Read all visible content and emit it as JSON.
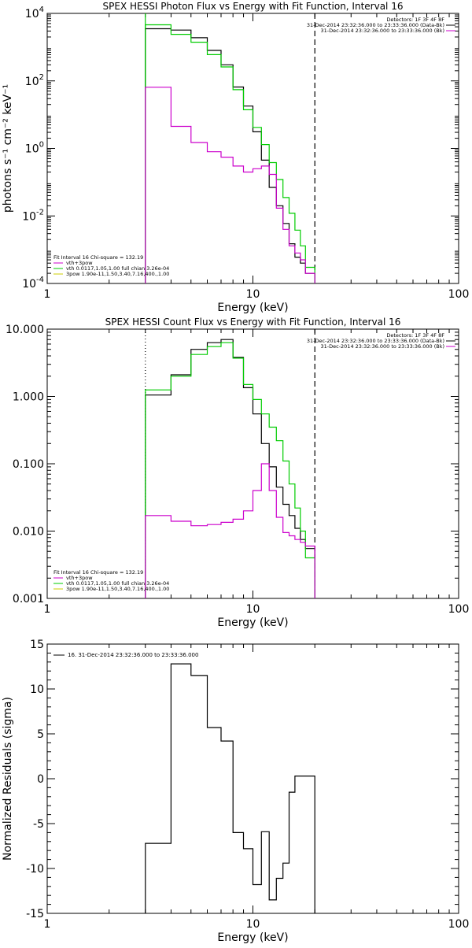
{
  "chart_data": [
    {
      "type": "line",
      "title": "SPEX HESSI Photon Flux vs Energy with Fit Function, Interval 16",
      "xlabel": "Energy (keV)",
      "ylabel": "photons s⁻¹ cm⁻² keV⁻¹",
      "x_scale": "log",
      "y_scale": "log",
      "xlim": [
        1,
        100
      ],
      "ylim": [
        0.0001,
        10000
      ],
      "x_ticks": [
        {
          "value": 1,
          "label": "1"
        },
        {
          "value": 10,
          "label": "10"
        },
        {
          "value": 100,
          "label": "100"
        }
      ],
      "y_ticks": [
        {
          "value": 0.0001,
          "base": "10",
          "exp": "-4"
        },
        {
          "value": 0.01,
          "base": "10",
          "exp": "-2"
        },
        {
          "value": 1,
          "base": "10",
          "exp": "0"
        },
        {
          "value": 100,
          "base": "10",
          "exp": "2"
        },
        {
          "value": 10000,
          "base": "10",
          "exp": "4"
        }
      ],
      "vlines": [
        {
          "x": 3,
          "style": "solid",
          "color": "#00cc00"
        },
        {
          "x": 20,
          "style": "dashed",
          "color": "#000000"
        }
      ],
      "legend_top_right": [
        {
          "text": "Detectors: 1F 3F 4F 8F",
          "color": ""
        },
        {
          "text": "31-Dec-2014 23:32:36.000 to 23:33:36.000 (Data-Bk)",
          "color": "#000000"
        },
        {
          "text": "31-Dec-2014 23:32:36.000 to 23:33:36.000 (Bk)",
          "color": "#cc00cc"
        }
      ],
      "legend_bottom_left": [
        {
          "text": "Fit Interval 16    Chi-square = 132.19",
          "color": ""
        },
        {
          "text": "vth+3pow",
          "color": "#cc00cc"
        },
        {
          "text": "vth 0.0117,1.05,1.00  full chian 3.26e-04",
          "color": "#00cc00"
        },
        {
          "text": "3pow  1.90e-11,1.50,3.40,7.16,400.,1.00",
          "color": "#cccc00"
        }
      ],
      "bin_edges": [
        3,
        4,
        5,
        6,
        7,
        8,
        9,
        10,
        11,
        12,
        13,
        14,
        15,
        16,
        17,
        18,
        20
      ],
      "series": [
        {
          "name": "Data-Bk",
          "color": "#000000",
          "values": [
            3500,
            3200,
            1900,
            800,
            300,
            66,
            18,
            3.1,
            0.45,
            0.07,
            0.02,
            0.006,
            0.0015,
            0.0006,
            0.0004,
            0.0002
          ]
        },
        {
          "name": "vth+3pow",
          "color": "#00cc00",
          "values": [
            4600,
            2400,
            1400,
            600,
            260,
            55,
            14,
            4.2,
            1.3,
            0.38,
            0.12,
            0.035,
            0.012,
            0.0038,
            0.0013,
            0.0003
          ]
        },
        {
          "name": "Bk",
          "color": "#cc00cc",
          "values": [
            65,
            4.5,
            1.5,
            0.8,
            0.55,
            0.3,
            0.2,
            0.25,
            0.3,
            0.17,
            0.017,
            0.004,
            0.0013,
            0.0008,
            0.0005,
            0.0002
          ]
        }
      ]
    },
    {
      "type": "line",
      "title": "SPEX HESSI Count Flux vs Energy with Fit Function, Interval 16",
      "xlabel": "Energy (keV)",
      "ylabel": "",
      "x_scale": "log",
      "y_scale": "log",
      "xlim": [
        1,
        100
      ],
      "ylim": [
        0.001,
        10
      ],
      "x_ticks": [
        {
          "value": 1,
          "label": "1"
        },
        {
          "value": 10,
          "label": "10"
        },
        {
          "value": 100,
          "label": "100"
        }
      ],
      "y_ticks": [
        {
          "value": 0.001,
          "label": "0.001"
        },
        {
          "value": 0.01,
          "label": "0.010"
        },
        {
          "value": 0.1,
          "label": "0.100"
        },
        {
          "value": 1,
          "label": "1.000"
        },
        {
          "value": 10,
          "label": "10.000"
        }
      ],
      "vlines": [
        {
          "x": 3,
          "style": "dotted",
          "color": "#000000"
        },
        {
          "x": 20,
          "style": "dashed",
          "color": "#000000"
        }
      ],
      "legend_top_right": [
        {
          "text": "Detectors: 1F 3F 4F 8F",
          "color": ""
        },
        {
          "text": "31-Dec-2014 23:32:36.000 to 23:33:36.000 (Data-Bk)",
          "color": "#000000"
        },
        {
          "text": "31-Dec-2014 23:32:36.000 to 23:33:36.000 (Bk)",
          "color": "#cc00cc"
        }
      ],
      "legend_bottom_left": [
        {
          "text": "Fit Interval 16    Chi-square = 132.19",
          "color": ""
        },
        {
          "text": "vth+3pow",
          "color": "#cc00cc"
        },
        {
          "text": "vth 0.0117,1.05,1.00  full chian 3.26e-04",
          "color": "#00cc00"
        },
        {
          "text": "3pow  1.90e-11,1.50,3.40,7.16,400.,1.00",
          "color": "#cccc00"
        }
      ],
      "bin_edges": [
        3,
        4,
        5,
        6,
        7,
        8,
        9,
        10,
        11,
        12,
        13,
        14,
        15,
        16,
        17,
        18,
        20
      ],
      "series": [
        {
          "name": "Data-Bk",
          "color": "#000000",
          "values": [
            1.05,
            2.1,
            5.0,
            6.3,
            7.0,
            3.8,
            1.35,
            0.55,
            0.2,
            0.09,
            0.045,
            0.025,
            0.017,
            0.011,
            0.0075,
            0.0055
          ]
        },
        {
          "name": "vth+3pow",
          "color": "#00cc00",
          "values": [
            1.25,
            2.0,
            4.2,
            5.5,
            6.3,
            3.7,
            1.5,
            0.9,
            0.55,
            0.35,
            0.22,
            0.11,
            0.05,
            0.022,
            0.01,
            0.004
          ]
        },
        {
          "name": "Bk",
          "color": "#cc00cc",
          "values": [
            0.017,
            0.014,
            0.012,
            0.0125,
            0.0135,
            0.015,
            0.02,
            0.04,
            0.1,
            0.04,
            0.016,
            0.0095,
            0.0085,
            0.0075,
            0.0068,
            0.006
          ]
        }
      ]
    },
    {
      "type": "line",
      "title": "",
      "xlabel": "Energy (keV)",
      "ylabel": "Normalized Residuals (sigma)",
      "x_scale": "log",
      "y_scale": "linear",
      "xlim": [
        1,
        100
      ],
      "ylim": [
        -15,
        15
      ],
      "x_ticks": [
        {
          "value": 1,
          "label": "1"
        },
        {
          "value": 10,
          "label": "10"
        },
        {
          "value": 100,
          "label": "100"
        }
      ],
      "y_ticks": [
        {
          "value": 15,
          "label": "15"
        },
        {
          "value": 10,
          "label": "10"
        },
        {
          "value": 5,
          "label": "5"
        },
        {
          "value": 0,
          "label": "0"
        },
        {
          "value": -5,
          "label": "-5"
        },
        {
          "value": -10,
          "label": "-10"
        },
        {
          "value": -15,
          "label": "-15"
        }
      ],
      "legend_top_left": [
        {
          "text": "16. 31-Dec-2014 23:32:36.000 to 23:33:36.000",
          "color": "#000000"
        }
      ],
      "bin_edges": [
        3,
        4,
        5,
        6,
        7,
        8,
        9,
        10,
        11,
        12,
        13,
        14,
        15,
        16,
        17,
        18,
        20
      ],
      "series": [
        {
          "name": "16. 31-Dec-2014 23:32:36.000 to 23:33:36.000",
          "color": "#000000",
          "values": [
            -7.2,
            12.8,
            11.5,
            5.7,
            4.2,
            -6.0,
            -7.8,
            -11.8,
            -5.9,
            -13.5,
            -11.1,
            -9.4,
            -1.5,
            0.3,
            0.3,
            0.3
          ]
        }
      ]
    }
  ]
}
